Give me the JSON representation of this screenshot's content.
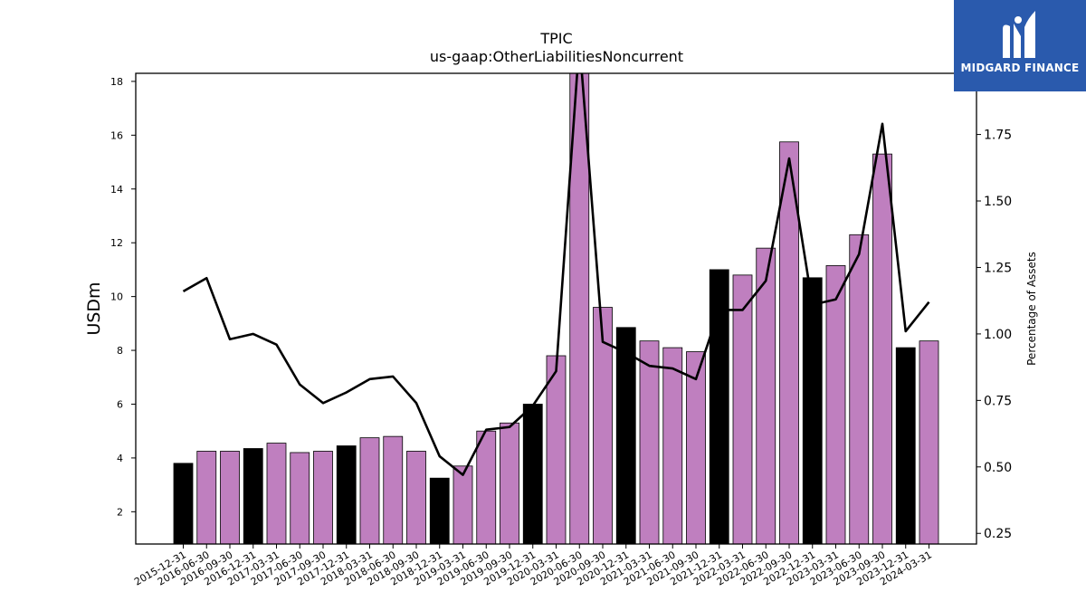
{
  "brand": {
    "name": "MIDGARD FINANCE",
    "icon": "midgard-logo-icon",
    "color": "#2a5aad"
  },
  "chart_data": {
    "type": "bar",
    "title": "TPIC",
    "subtitle": "us-gaap:OtherLiabilitiesNoncurrent",
    "ylabel": "USDm",
    "y2label": "Percentage of Assets",
    "ylim": [
      0.8,
      18.3
    ],
    "y2lim": [
      0.21,
      1.98
    ],
    "yticks": [
      2,
      4,
      6,
      8,
      10,
      12,
      14,
      16,
      18
    ],
    "y2ticks": [
      "0.25",
      "0.50",
      "0.75",
      "1.00",
      "1.25",
      "1.50",
      "1.75"
    ],
    "grid": false,
    "colors": {
      "q4_bar": "#000000",
      "other_bar": "#bf7fbf",
      "line": "#000000"
    },
    "categories": [
      "2015-12-31",
      "2016-06-30",
      "2016-09-30",
      "2016-12-31",
      "2017-03-31",
      "2017-06-30",
      "2017-09-30",
      "2017-12-31",
      "2018-03-31",
      "2018-06-30",
      "2018-09-30",
      "2018-12-31",
      "2019-03-31",
      "2019-06-30",
      "2019-09-30",
      "2019-12-31",
      "2020-03-31",
      "2020-06-30",
      "2020-09-30",
      "2020-12-31",
      "2021-03-31",
      "2021-06-30",
      "2021-09-30",
      "2021-12-31",
      "2022-03-31",
      "2022-06-30",
      "2022-09-30",
      "2022-12-31",
      "2023-03-31",
      "2023-06-30",
      "2023-09-30",
      "2023-12-31",
      "2024-03-31"
    ],
    "series": [
      {
        "type": "bar",
        "axis": "left",
        "values": [
          3.8,
          4.25,
          4.25,
          4.35,
          4.55,
          4.2,
          4.25,
          4.45,
          4.75,
          4.8,
          4.25,
          3.25,
          3.7,
          5.0,
          5.3,
          6.0,
          7.8,
          18.5,
          9.6,
          8.85,
          8.35,
          8.1,
          7.95,
          11.0,
          10.8,
          11.8,
          15.75,
          10.7,
          11.15,
          12.3,
          15.3,
          8.1,
          8.35
        ],
        "highlight": [
          true,
          false,
          false,
          true,
          false,
          false,
          false,
          true,
          false,
          false,
          false,
          true,
          false,
          false,
          false,
          true,
          false,
          false,
          false,
          true,
          false,
          false,
          false,
          true,
          false,
          false,
          false,
          true,
          false,
          false,
          false,
          true,
          false
        ]
      },
      {
        "type": "line",
        "axis": "right",
        "values": [
          1.16,
          1.21,
          0.98,
          1.0,
          0.96,
          0.81,
          0.74,
          0.78,
          0.83,
          0.84,
          0.74,
          0.54,
          0.47,
          0.64,
          0.65,
          0.73,
          0.86,
          2.1,
          0.97,
          0.93,
          0.88,
          0.87,
          0.83,
          1.09,
          1.09,
          1.2,
          1.66,
          1.11,
          1.13,
          1.3,
          1.79,
          1.01,
          1.12
        ]
      }
    ]
  }
}
